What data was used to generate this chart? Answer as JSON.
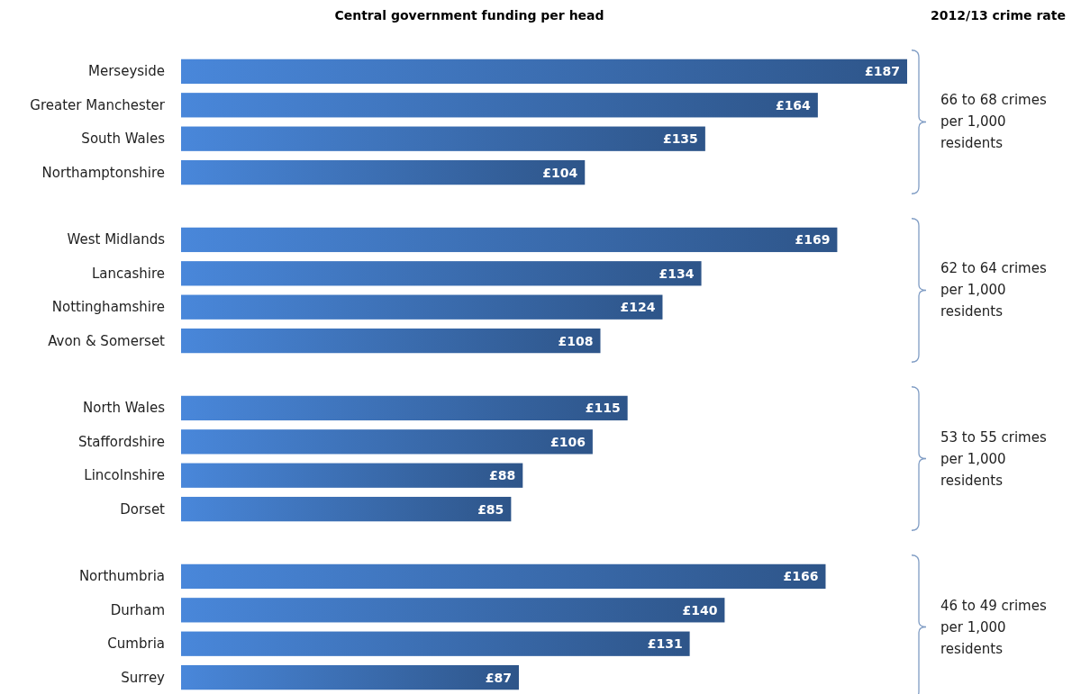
{
  "chart_data": {
    "type": "bar",
    "orientation": "horizontal",
    "title": "Central government funding per head",
    "categories": [
      "Merseyside",
      "Greater Manchester",
      "South Wales",
      "Northamptonshire",
      null,
      "West Midlands",
      "Lancashire",
      "Nottinghamshire",
      "Avon & Somerset",
      null,
      "North Wales",
      "Staffordshire",
      "Lincolnshire",
      "Dorset",
      null,
      "Northumbria",
      "Durham",
      "Cumbria",
      "Surrey"
    ],
    "values": [
      187,
      164,
      135,
      104,
      null,
      169,
      134,
      124,
      108,
      null,
      115,
      106,
      88,
      85,
      null,
      166,
      140,
      131,
      87
    ],
    "value_labels": [
      "£187",
      "£164",
      "£135",
      "£104",
      null,
      "£169",
      "£134",
      "£124",
      "£108",
      null,
      "£115",
      "£106",
      "£88",
      "£85",
      null,
      "£166",
      "£140",
      "£131",
      "£87"
    ],
    "color": "#3b6db0",
    "annotations": [
      "2012/13 crime rate",
      "66 to 68 crimes per 1,000 residents",
      "62 to 64 crimes per 1,000 residents",
      "53 to 55 crimes per 1,000 residents",
      "46 to 49 crimes per 1,000 residents"
    ]
  }
}
